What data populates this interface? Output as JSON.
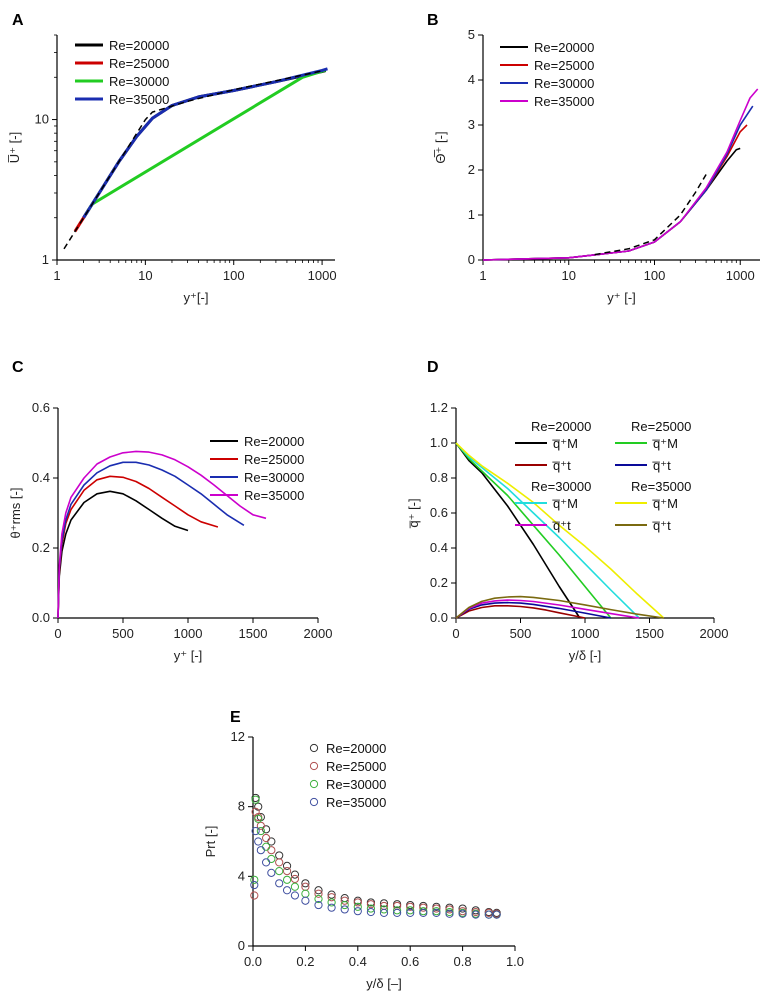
{
  "chart_data": [
    {
      "panel": "A",
      "type": "line",
      "xscale": "log",
      "yscale": "log",
      "xlim": [
        1,
        1400
      ],
      "ylim": [
        1,
        40
      ],
      "xticks": [
        "1",
        "10",
        "100",
        "1000"
      ],
      "yticks": [
        "1",
        "10"
      ],
      "xlabel": "y⁺[-]",
      "ylabel": "U̅⁺ [-]",
      "series": [
        {
          "name": "Re=20000",
          "color": "#000000",
          "x": [
            2,
            3,
            5,
            8,
            12,
            20,
            40,
            100,
            300,
            1000,
            1100
          ],
          "y": [
            2,
            3,
            5,
            7.6,
            10.2,
            12.6,
            14.5,
            16.1,
            18.6,
            22.0,
            22.3
          ]
        },
        {
          "name": "Re=25000",
          "color": "#cc0000",
          "x": [
            1.6,
            2,
            2.3
          ],
          "y": [
            1.6,
            2,
            2.3
          ]
        },
        {
          "name": "Re=30000",
          "color": "#22cc22",
          "x": [
            2.1,
            2.5,
            600,
            1100
          ],
          "y": [
            2.1,
            2.5,
            20.0,
            22.5
          ]
        },
        {
          "name": "Re=35000",
          "color": "#1a2db0",
          "x": [
            2,
            3,
            5,
            8,
            12,
            20,
            40,
            100,
            300,
            1000,
            1150
          ],
          "y": [
            2,
            3,
            5,
            7.6,
            10.2,
            12.6,
            14.5,
            16.1,
            18.6,
            22.4,
            23.0
          ]
        },
        {
          "name": "reference",
          "color": "#000000",
          "dashed": true,
          "x": [
            1.2,
            3,
            6,
            10,
            12,
            15,
            30,
            100,
            1000
          ],
          "y": [
            1.2,
            3,
            6,
            10,
            11.3,
            11.8,
            13.5,
            16.3,
            22.2
          ]
        }
      ]
    },
    {
      "panel": "B",
      "type": "line",
      "xscale": "log",
      "xlim": [
        1,
        1700
      ],
      "ylim": [
        0,
        5
      ],
      "xticks": [
        "1",
        "10",
        "100",
        "1000"
      ],
      "yticks": [
        "0",
        "1",
        "2",
        "3",
        "4",
        "5"
      ],
      "xlabel": "y⁺ [-]",
      "ylabel": "Θ̅⁺ [-]",
      "series": [
        {
          "name": "Re=20000",
          "color": "#000000",
          "x": [
            1,
            10,
            50,
            100,
            200,
            400,
            700,
            900,
            1000
          ],
          "y": [
            0,
            0.05,
            0.2,
            0.4,
            0.85,
            1.55,
            2.2,
            2.45,
            2.48
          ]
        },
        {
          "name": "Re=25000",
          "color": "#cc0000",
          "x": [
            1,
            10,
            50,
            100,
            200,
            400,
            700,
            1000,
            1200
          ],
          "y": [
            0,
            0.05,
            0.2,
            0.4,
            0.85,
            1.55,
            2.3,
            2.85,
            3.0
          ]
        },
        {
          "name": "Re=30000",
          "color": "#1a2db0",
          "x": [
            1,
            10,
            50,
            100,
            200,
            400,
            700,
            1000,
            1400
          ],
          "y": [
            0,
            0.05,
            0.2,
            0.4,
            0.85,
            1.55,
            2.35,
            3.0,
            3.42
          ]
        },
        {
          "name": "Re=35000",
          "color": "#cc00cc",
          "x": [
            1,
            10,
            50,
            100,
            200,
            400,
            700,
            1000,
            1300,
            1600
          ],
          "y": [
            0,
            0.05,
            0.2,
            0.4,
            0.85,
            1.6,
            2.4,
            3.1,
            3.6,
            3.8
          ]
        },
        {
          "name": "reference",
          "color": "#000000",
          "dashed": true,
          "x": [
            20,
            50,
            100,
            200,
            300,
            400
          ],
          "y": [
            0.12,
            0.25,
            0.45,
            1.0,
            1.5,
            1.9
          ]
        }
      ]
    },
    {
      "panel": "C",
      "type": "line",
      "xlim": [
        0,
        2000
      ],
      "ylim": [
        0,
        0.6
      ],
      "xticks": [
        "0",
        "500",
        "1000",
        "1500",
        "2000"
      ],
      "yticks": [
        "0.0",
        "0.2",
        "0.4",
        "0.6"
      ],
      "xlabel": "y⁺ [-]",
      "ylabel": "θ⁺rms [-]",
      "series": [
        {
          "name": "Re=20000",
          "color": "#000000",
          "x": [
            0,
            10,
            30,
            60,
            100,
            200,
            300,
            400,
            500,
            600,
            700,
            800,
            900,
            1000
          ],
          "y": [
            0,
            0.12,
            0.19,
            0.24,
            0.28,
            0.33,
            0.355,
            0.362,
            0.355,
            0.335,
            0.31,
            0.285,
            0.262,
            0.25
          ]
        },
        {
          "name": "Re=25000",
          "color": "#cc0000",
          "x": [
            0,
            10,
            30,
            60,
            100,
            200,
            300,
            400,
            500,
            600,
            700,
            800,
            900,
            1000,
            1100,
            1230
          ],
          "y": [
            0,
            0.13,
            0.21,
            0.27,
            0.31,
            0.365,
            0.395,
            0.405,
            0.402,
            0.39,
            0.37,
            0.345,
            0.32,
            0.295,
            0.275,
            0.26
          ]
        },
        {
          "name": "Re=30000",
          "color": "#1a2db0",
          "x": [
            0,
            10,
            30,
            60,
            100,
            200,
            300,
            400,
            500,
            600,
            700,
            800,
            900,
            1000,
            1100,
            1200,
            1300,
            1430
          ],
          "y": [
            0,
            0.14,
            0.22,
            0.28,
            0.325,
            0.38,
            0.415,
            0.435,
            0.445,
            0.445,
            0.437,
            0.423,
            0.405,
            0.38,
            0.355,
            0.325,
            0.295,
            0.265
          ]
        },
        {
          "name": "Re=35000",
          "color": "#cc00cc",
          "x": [
            0,
            10,
            30,
            60,
            100,
            200,
            300,
            400,
            500,
            600,
            700,
            800,
            900,
            1000,
            1100,
            1200,
            1300,
            1400,
            1500,
            1600
          ],
          "y": [
            0,
            0.15,
            0.24,
            0.3,
            0.345,
            0.4,
            0.44,
            0.46,
            0.472,
            0.476,
            0.474,
            0.466,
            0.452,
            0.432,
            0.408,
            0.38,
            0.35,
            0.32,
            0.295,
            0.285
          ]
        }
      ]
    },
    {
      "panel": "D",
      "type": "line",
      "xlim": [
        0,
        2000
      ],
      "ylim": [
        0,
        1.2
      ],
      "xticks": [
        "0",
        "500",
        "1000",
        "1500",
        "2000"
      ],
      "yticks": [
        "0.0",
        "0.2",
        "0.4",
        "0.6",
        "0.8",
        "1.0",
        "1.2"
      ],
      "xlabel": "y/δ [-]",
      "ylabel": "q̅⁺ [-]",
      "legend_groups": [
        "Re=20000",
        "Re=25000",
        "Re=30000",
        "Re=35000"
      ],
      "legend_entries": [
        "q̅⁺M",
        "q̅⁺t"
      ],
      "series": [
        {
          "name": "Re=20000 q̅⁺M",
          "color": "#000000",
          "x": [
            0,
            100,
            200,
            400,
            600,
            800,
            960
          ],
          "y": [
            1.0,
            0.9,
            0.83,
            0.64,
            0.42,
            0.18,
            0.0
          ]
        },
        {
          "name": "Re=20000 q̅⁺t",
          "color": "#990000",
          "x": [
            0,
            100,
            200,
            300,
            400,
            500,
            600,
            700,
            800,
            900,
            1000
          ],
          "y": [
            0,
            0.04,
            0.06,
            0.07,
            0.07,
            0.066,
            0.058,
            0.045,
            0.03,
            0.015,
            0
          ]
        },
        {
          "name": "Re=25000 q̅⁺M",
          "color": "#22cc22",
          "x": [
            0,
            100,
            200,
            400,
            600,
            800,
            1000,
            1200
          ],
          "y": [
            1.0,
            0.91,
            0.84,
            0.7,
            0.53,
            0.36,
            0.18,
            0.0
          ]
        },
        {
          "name": "Re=25000 q̅⁺t",
          "color": "#0a0a99",
          "x": [
            0,
            100,
            200,
            300,
            400,
            500,
            600,
            800,
            1000,
            1200
          ],
          "y": [
            0,
            0.05,
            0.075,
            0.085,
            0.088,
            0.085,
            0.078,
            0.055,
            0.028,
            0
          ]
        },
        {
          "name": "Re=30000 q̅⁺M",
          "color": "#22dddd",
          "x": [
            0,
            100,
            200,
            400,
            600,
            800,
            1000,
            1200,
            1420
          ],
          "y": [
            1.0,
            0.92,
            0.86,
            0.74,
            0.6,
            0.46,
            0.31,
            0.16,
            0.0
          ]
        },
        {
          "name": "Re=30000 q̅⁺t",
          "color": "#cc00cc",
          "x": [
            0,
            100,
            200,
            300,
            400,
            500,
            600,
            800,
            1000,
            1200,
            1420
          ],
          "y": [
            0,
            0.055,
            0.085,
            0.098,
            0.102,
            0.1,
            0.094,
            0.074,
            0.05,
            0.025,
            0
          ]
        },
        {
          "name": "Re=35000 q̅⁺M",
          "color": "#eeee00",
          "x": [
            0,
            100,
            200,
            400,
            600,
            800,
            1000,
            1200,
            1400,
            1610
          ],
          "y": [
            1.0,
            0.93,
            0.87,
            0.77,
            0.66,
            0.53,
            0.41,
            0.28,
            0.14,
            0.0
          ]
        },
        {
          "name": "Re=35000 q̅⁺t",
          "color": "#7a6a10",
          "x": [
            0,
            100,
            200,
            300,
            400,
            500,
            600,
            800,
            1000,
            1200,
            1400,
            1610
          ],
          "y": [
            0,
            0.06,
            0.095,
            0.113,
            0.12,
            0.122,
            0.118,
            0.1,
            0.075,
            0.048,
            0.022,
            0
          ]
        }
      ]
    },
    {
      "panel": "E",
      "type": "scatter",
      "xlim": [
        0,
        1.0
      ],
      "ylim": [
        0,
        12
      ],
      "xticks": [
        "0.0",
        "0.2",
        "0.4",
        "0.6",
        "0.8",
        "1.0"
      ],
      "yticks": [
        "0",
        "4",
        "8",
        "12"
      ],
      "xlabel": "y/δ [–]",
      "ylabel": "Prt [-]",
      "series": [
        {
          "name": "Re=20000",
          "color": "#333333",
          "x": [
            0.01,
            0.02,
            0.03,
            0.05,
            0.07,
            0.1,
            0.13,
            0.16,
            0.2,
            0.25,
            0.3,
            0.35,
            0.4,
            0.45,
            0.5,
            0.55,
            0.6,
            0.65,
            0.7,
            0.75,
            0.8,
            0.85,
            0.9,
            0.93
          ],
          "y": [
            8.5,
            8.0,
            7.4,
            6.7,
            6.0,
            5.2,
            4.6,
            4.1,
            3.6,
            3.2,
            2.95,
            2.75,
            2.6,
            2.5,
            2.45,
            2.4,
            2.35,
            2.3,
            2.25,
            2.2,
            2.15,
            2.05,
            1.95,
            1.9
          ]
        },
        {
          "name": "Re=25000",
          "color": "#b05050",
          "x": [
            0.005,
            0.01,
            0.02,
            0.03,
            0.05,
            0.07,
            0.1,
            0.13,
            0.16,
            0.2,
            0.25,
            0.3,
            0.35,
            0.4,
            0.45,
            0.5,
            0.55,
            0.6,
            0.65,
            0.7,
            0.75,
            0.8,
            0.85,
            0.9,
            0.93
          ],
          "y": [
            2.9,
            7.7,
            7.4,
            6.9,
            6.2,
            5.5,
            4.8,
            4.3,
            3.85,
            3.4,
            3.0,
            2.8,
            2.6,
            2.5,
            2.4,
            2.3,
            2.3,
            2.25,
            2.2,
            2.15,
            2.1,
            2.0,
            1.95,
            1.9,
            1.85
          ]
        },
        {
          "name": "Re=30000",
          "color": "#3cb03c",
          "x": [
            0.005,
            0.01,
            0.02,
            0.03,
            0.05,
            0.07,
            0.1,
            0.13,
            0.16,
            0.2,
            0.25,
            0.3,
            0.35,
            0.4,
            0.45,
            0.5,
            0.55,
            0.6,
            0.65,
            0.7,
            0.75,
            0.8,
            0.85,
            0.9,
            0.93
          ],
          "y": [
            3.8,
            8.4,
            7.3,
            6.6,
            5.7,
            5.0,
            4.3,
            3.8,
            3.4,
            3.0,
            2.7,
            2.5,
            2.35,
            2.25,
            2.15,
            2.1,
            2.05,
            2.05,
            2.0,
            2.0,
            1.95,
            1.9,
            1.85,
            1.8,
            1.8
          ]
        },
        {
          "name": "Re=35000",
          "color": "#4050a0",
          "x": [
            0.005,
            0.01,
            0.02,
            0.03,
            0.05,
            0.07,
            0.1,
            0.13,
            0.16,
            0.2,
            0.25,
            0.3,
            0.35,
            0.4,
            0.45,
            0.5,
            0.55,
            0.6,
            0.65,
            0.7,
            0.75,
            0.8,
            0.85,
            0.9,
            0.93
          ],
          "y": [
            3.5,
            6.6,
            6.0,
            5.5,
            4.8,
            4.2,
            3.6,
            3.2,
            2.9,
            2.6,
            2.35,
            2.2,
            2.1,
            2.0,
            1.95,
            1.9,
            1.9,
            1.9,
            1.9,
            1.9,
            1.85,
            1.85,
            1.8,
            1.8,
            1.8
          ]
        }
      ]
    }
  ]
}
